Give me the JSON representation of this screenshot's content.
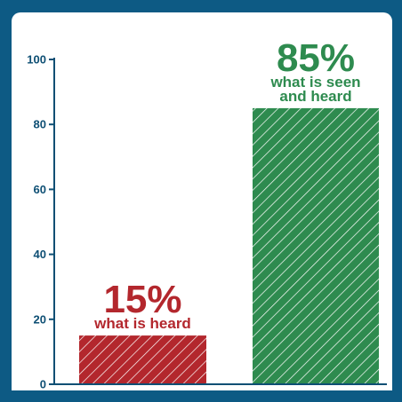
{
  "chart_data": {
    "type": "bar",
    "categories": [
      "what is heard",
      "what is seen and heard"
    ],
    "values": [
      15,
      85
    ],
    "ylim": [
      0,
      100
    ],
    "yticks": [
      0,
      20,
      40,
      60,
      80,
      100
    ],
    "ytick_labels": [
      "0",
      "20",
      "40",
      "60",
      "80",
      "100"
    ],
    "bar_labels": [
      {
        "value": "15%",
        "description": [
          "what is heard"
        ],
        "color": "#b3272d"
      },
      {
        "value": "85%",
        "description": [
          "what is seen",
          "and heard"
        ],
        "color": "#2e8b4f"
      }
    ],
    "bar_colors": [
      "#b3272d",
      "#2e8b4f"
    ],
    "hatched": true,
    "grid": false,
    "title": "",
    "xlabel": "",
    "ylabel": ""
  },
  "colors": {
    "background": "#0d5a84",
    "axis": "#0e4f74",
    "panel": "#ffffff"
  }
}
